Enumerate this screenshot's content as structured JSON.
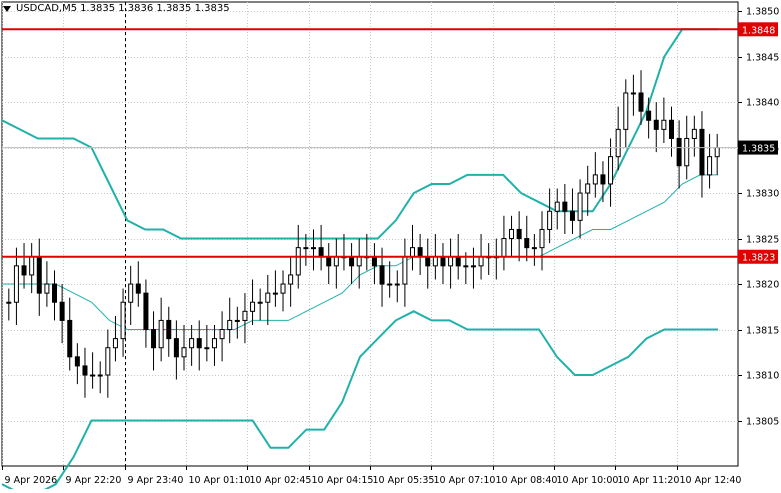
{
  "header": {
    "symbol": "USDCAD,M5",
    "ohlc": "1.3835 1.3836 1.3835 1.3835"
  },
  "colors": {
    "background": "#ffffff",
    "grid": "#c8c8c8",
    "candle": "#000000",
    "bands": "#20b2aa",
    "level_line": "#e00000",
    "level_label_bg": "#e00000",
    "price_label_bg": "#000000"
  },
  "price_labels": {
    "upper_level": "1.3848",
    "current": "1.3835",
    "lower_level": "1.3823"
  },
  "chart_data": {
    "type": "candlestick",
    "title": "",
    "symbol": "USDCAD",
    "timeframe": "M5",
    "ylim": [
      1.38,
      1.3851
    ],
    "y_ticks": [
      "1.3850",
      "1.3845",
      "1.3840",
      "1.3835",
      "1.3830",
      "1.3825",
      "1.3820",
      "1.3815",
      "1.3810",
      "1.3805"
    ],
    "x_ticks": [
      "9 Apr 2026",
      "9 Apr 22:20",
      "9 Apr 23:40",
      "10 Apr 01:10",
      "10 Apr 02:45",
      "10 Apr 04:15",
      "10 Apr 05:35",
      "10 Apr 07:10",
      "10 Apr 08:40",
      "10 Apr 10:00",
      "10 Apr 11:20",
      "10 Apr 12:40"
    ],
    "grid": true,
    "vertical_marker": "9 Apr 23:40",
    "horizontal_levels": [
      1.3848,
      1.3823
    ],
    "current_price": 1.3835,
    "close": [
      1.3818,
      1.3822,
      1.3821,
      1.3823,
      1.3819,
      1.382,
      1.3818,
      1.3816,
      1.3812,
      1.3811,
      1.381,
      1.381,
      1.381,
      1.3813,
      1.3814,
      1.3818,
      1.382,
      1.3819,
      1.3815,
      1.3813,
      1.3816,
      1.3814,
      1.3812,
      1.3813,
      1.3814,
      1.3813,
      1.3813,
      1.3814,
      1.3815,
      1.3816,
      1.3816,
      1.3817,
      1.3818,
      1.3818,
      1.3819,
      1.3819,
      1.382,
      1.3821,
      1.3824,
      1.3824,
      1.3824,
      1.3823,
      1.3822,
      1.3823,
      1.3823,
      1.3822,
      1.3823,
      1.3823,
      1.3822,
      1.382,
      1.382,
      1.382,
      1.3823,
      1.3824,
      1.3823,
      1.3822,
      1.3823,
      1.3822,
      1.3823,
      1.3822,
      1.3822,
      1.3822,
      1.3823,
      1.3823,
      1.3823,
      1.3825,
      1.3826,
      1.3825,
      1.3824,
      1.3824,
      1.3826,
      1.3828,
      1.3829,
      1.3828,
      1.3827,
      1.383,
      1.3831,
      1.3832,
      1.3831,
      1.3834,
      1.3837,
      1.3841,
      1.3841,
      1.3839,
      1.3838,
      1.3837,
      1.3838,
      1.3836,
      1.3833,
      1.3836,
      1.3837,
      1.3832,
      1.3834,
      1.3835
    ],
    "bollinger": {
      "upper": [
        1.3838,
        1.3837,
        1.3836,
        1.3836,
        1.3836,
        1.3835,
        1.3831,
        1.3827,
        1.3826,
        1.3826,
        1.3825,
        1.3825,
        1.3825,
        1.3825,
        1.3825,
        1.3825,
        1.3825,
        1.3825,
        1.3825,
        1.3825,
        1.3825,
        1.3825,
        1.3827,
        1.383,
        1.3831,
        1.3831,
        1.3832,
        1.3832,
        1.3832,
        1.383,
        1.3829,
        1.3828,
        1.3828,
        1.3828,
        1.3831,
        1.3835,
        1.3839,
        1.3845,
        1.3848,
        1.3848,
        1.3848
      ],
      "middle": [
        1.382,
        1.382,
        1.382,
        1.382,
        1.3819,
        1.3818,
        1.3816,
        1.3815,
        1.3815,
        1.3815,
        1.3815,
        1.3815,
        1.3815,
        1.3815,
        1.3816,
        1.3816,
        1.3816,
        1.3817,
        1.3818,
        1.3819,
        1.3821,
        1.3822,
        1.3822,
        1.3823,
        1.3823,
        1.3823,
        1.3823,
        1.3823,
        1.3823,
        1.3823,
        1.3823,
        1.3824,
        1.3825,
        1.3826,
        1.3826,
        1.3827,
        1.3828,
        1.3829,
        1.3831,
        1.3832,
        1.3832
      ],
      "lower": [
        1.3798,
        1.3797,
        1.3797,
        1.3798,
        1.3801,
        1.3805,
        1.3805,
        1.3805,
        1.3805,
        1.3805,
        1.3805,
        1.3805,
        1.3805,
        1.3805,
        1.3805,
        1.3802,
        1.3802,
        1.3804,
        1.3804,
        1.3807,
        1.3812,
        1.3814,
        1.3816,
        1.3817,
        1.3816,
        1.3816,
        1.3815,
        1.3815,
        1.3815,
        1.3815,
        1.3815,
        1.3812,
        1.381,
        1.381,
        1.3811,
        1.3812,
        1.3814,
        1.3815,
        1.3815,
        1.3815,
        1.3815
      ]
    }
  }
}
